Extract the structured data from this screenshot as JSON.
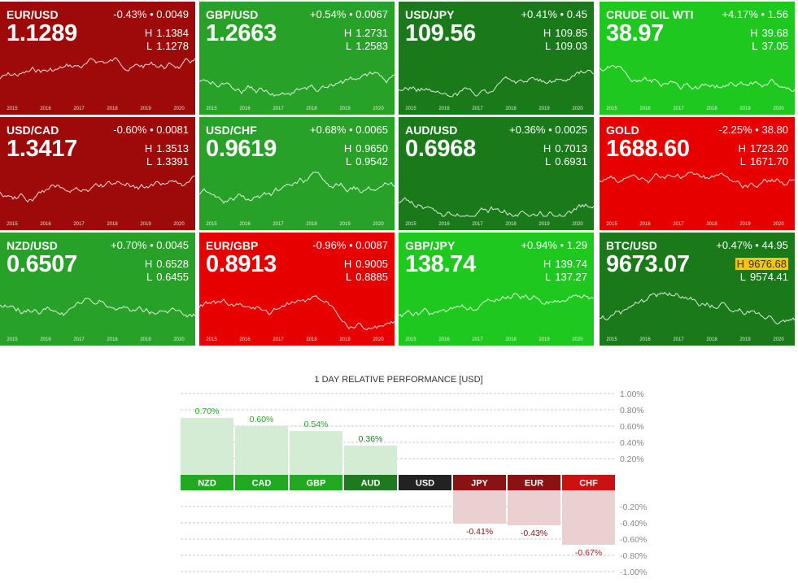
{
  "colors": {
    "dark_red": "#9e0a0a",
    "bright_red": "#e60000",
    "dark_green": "#1a7a1a",
    "mid_green": "#27a127",
    "bright_green": "#1ec81e",
    "bar_pos_fill": "#d4ecd4",
    "bar_neg_fill": "#ead0d0",
    "label_green": "#2aa52a",
    "label_dark_green": "#1f7a1f",
    "label_dark_red": "#8a1212",
    "label_red": "#b01818",
    "label_dark": "#222222"
  },
  "tiles": [
    {
      "name": "EUR/USD",
      "change": "-0.43% • 0.0049",
      "price": "1.1289",
      "high": "1.1384",
      "low": "1.1278",
      "tone": "dark_red",
      "years": [
        "2015",
        "2016",
        "2017",
        "2018",
        "2019",
        "2020"
      ]
    },
    {
      "name": "GBP/USD",
      "change": "+0.54% • 0.0067",
      "price": "1.2663",
      "high": "1.2731",
      "low": "1.2583",
      "tone": "mid_green",
      "years": [
        "2015",
        "2016",
        "2017",
        "2018",
        "2019",
        "2020"
      ]
    },
    {
      "name": "USD/JPY",
      "change": "+0.41% • 0.45",
      "price": "109.56",
      "high": "109.85",
      "low": "109.03",
      "tone": "dark_green",
      "years": [
        "2015",
        "2016",
        "2017",
        "2018",
        "2019",
        "2020"
      ]
    },
    {
      "name": "CRUDE OIL WTI",
      "change": "+4.17% • 1.56",
      "price": "38.97",
      "high": "39.68",
      "low": "37.05",
      "tone": "bright_green",
      "years": [
        "2015",
        "2016",
        "2017",
        "2018",
        "2019",
        "2020"
      ]
    },
    {
      "name": "USD/CAD",
      "change": "-0.60% • 0.0081",
      "price": "1.3417",
      "high": "1.3513",
      "low": "1.3391",
      "tone": "dark_red",
      "years": [
        "2015",
        "2016",
        "2017",
        "2018",
        "2019",
        "2020"
      ]
    },
    {
      "name": "USD/CHF",
      "change": "+0.68% • 0.0065",
      "price": "0.9619",
      "high": "0.9650",
      "low": "0.9542",
      "tone": "mid_green",
      "years": [
        "2015",
        "2016",
        "2017",
        "2018",
        "2019",
        "2020"
      ]
    },
    {
      "name": "AUD/USD",
      "change": "+0.36% • 0.0025",
      "price": "0.6968",
      "high": "0.7013",
      "low": "0.6931",
      "tone": "dark_green",
      "years": [
        "2015",
        "2016",
        "2017",
        "2018",
        "2019",
        "2020"
      ]
    },
    {
      "name": "GOLD",
      "change": "-2.25% • 38.80",
      "price": "1688.60",
      "high": "1723.20",
      "low": "1671.70",
      "tone": "bright_red",
      "years": [
        "2015",
        "2016",
        "2017",
        "2018",
        "2019",
        "2020"
      ]
    },
    {
      "name": "NZD/USD",
      "change": "+0.70% • 0.0045",
      "price": "0.6507",
      "high": "0.6528",
      "low": "0.6455",
      "tone": "mid_green",
      "years": [
        "2015",
        "2016",
        "2017",
        "2018",
        "2019",
        "2020"
      ]
    },
    {
      "name": "EUR/GBP",
      "change": "-0.96% • 0.0087",
      "price": "0.8913",
      "high": "0.9005",
      "low": "0.8885",
      "tone": "bright_red",
      "years": [
        "2015",
        "2016",
        "2017",
        "2018",
        "2019",
        "2020"
      ]
    },
    {
      "name": "GBP/JPY",
      "change": "+0.94% • 1.29",
      "price": "138.74",
      "high": "139.74",
      "low": "137.27",
      "tone": "bright_green",
      "years": [
        "2015",
        "2016",
        "2017",
        "2018",
        "2019",
        "2020"
      ]
    },
    {
      "name": "BTC/USD",
      "change": "+0.47% • 44.95",
      "price": "9673.07",
      "high": "9676.68",
      "low": "9574.41",
      "tone": "dark_green",
      "high_highlight": true,
      "years": [
        "2015",
        "2016",
        "2017",
        "2018",
        "2019",
        "2020"
      ]
    }
  ],
  "hl_labels": {
    "high": "H",
    "low": "L"
  },
  "chart_data": {
    "type": "bar",
    "title": "1 DAY RELATIVE PERFORMANCE  [USD]",
    "categories": [
      "NZD",
      "CAD",
      "GBP",
      "AUD",
      "USD",
      "JPY",
      "EUR",
      "CHF"
    ],
    "values": [
      0.7,
      0.6,
      0.54,
      0.36,
      0.0,
      -0.41,
      -0.43,
      -0.67
    ],
    "value_labels": [
      "0.70%",
      "0.60%",
      "0.54%",
      "0.36%",
      "",
      "-0.41%",
      "-0.43%",
      "-0.67%"
    ],
    "label_colors": [
      "#2aa52a",
      "#2aa52a",
      "#2aa52a",
      "#1f7a1f",
      "#222222",
      "#8a1212",
      "#8a1212",
      "#b01818"
    ],
    "yticks_pos": [
      "1.00%",
      "0.80%",
      "0.60%",
      "0.40%",
      "0.20%"
    ],
    "yticks_pos_values": [
      1.0,
      0.8,
      0.6,
      0.4,
      0.2
    ],
    "yticks_neg": [
      "-0.20%",
      "-0.40%",
      "-0.60%",
      "-0.80%",
      "-1.00%"
    ],
    "yticks_neg_values": [
      -0.2,
      -0.4,
      -0.6,
      -0.8,
      -1.0
    ],
    "ylim": [
      -1.0,
      1.0
    ],
    "grid": true
  }
}
